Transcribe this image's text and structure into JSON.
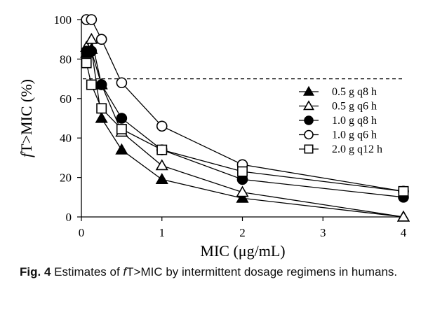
{
  "chart_data": {
    "type": "line",
    "xlabel": "MIC (μg/mL)",
    "ylabel_italic": "f",
    "ylabel_rest": "T>MIC (%)",
    "x_ticks": [
      "0",
      "1",
      "2",
      "3",
      "4"
    ],
    "y_ticks": [
      "0",
      "20",
      "40",
      "60",
      "80",
      "100"
    ],
    "xlim": [
      0,
      4
    ],
    "ylim": [
      0,
      100
    ],
    "threshold": 70,
    "legend_position": "right",
    "series": [
      {
        "name": "0.5 g q8 h",
        "marker": "triangle",
        "fill": "#000000",
        "x": [
          0.0625,
          0.125,
          0.25,
          0.5,
          1,
          2,
          4
        ],
        "y": [
          83,
          85,
          50,
          34,
          19,
          9.5,
          0
        ]
      },
      {
        "name": "0.5 g q6 h",
        "marker": "triangle",
        "fill": "#ffffff",
        "x": [
          0.0625,
          0.125,
          0.25,
          0.5,
          1,
          2,
          4
        ],
        "y": [
          86,
          90,
          67,
          43,
          26,
          12.5,
          0
        ]
      },
      {
        "name": "1.0 g q8 h",
        "marker": "circle",
        "fill": "#000000",
        "x": [
          0.0625,
          0.125,
          0.25,
          0.5,
          1,
          2,
          4
        ],
        "y": [
          84,
          84,
          67,
          50,
          34,
          19,
          10
        ]
      },
      {
        "name": "1.0 g q6 h",
        "marker": "circle",
        "fill": "#ffffff",
        "x": [
          0.0625,
          0.125,
          0.25,
          0.5,
          1,
          2,
          4
        ],
        "y": [
          100,
          100,
          90,
          68,
          46,
          26.5,
          13
        ]
      },
      {
        "name": "2.0 g q12 h",
        "marker": "square",
        "fill": "#ffffff",
        "x": [
          0.0625,
          0.125,
          0.25,
          0.5,
          1,
          2,
          4
        ],
        "y": [
          78,
          67,
          55,
          44.5,
          34,
          23,
          13
        ]
      }
    ]
  },
  "caption": {
    "label": "Fig. 4",
    "text_before": "Estimates of ",
    "italic": "f",
    "text_after": "T>MIC by intermittent dosage regimens in humans."
  }
}
